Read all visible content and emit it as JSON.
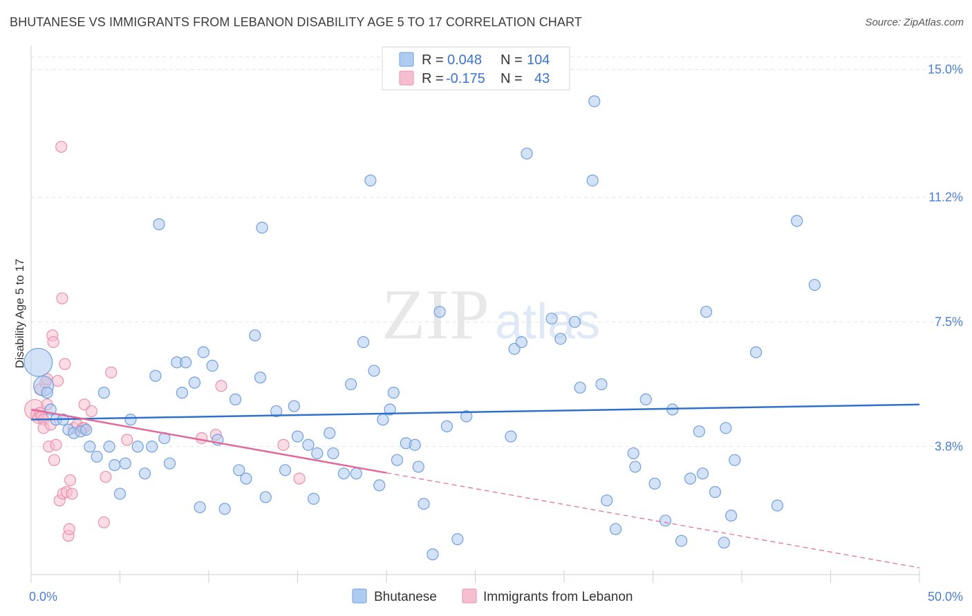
{
  "title": "BHUTANESE VS IMMIGRANTS FROM LEBANON DISABILITY AGE 5 TO 17 CORRELATION CHART",
  "source": "Source: ZipAtlas.com",
  "watermark": {
    "zip": "ZIP",
    "atlas": "atlas"
  },
  "colors": {
    "blue_fill": "#aecbf0",
    "blue_stroke": "#6f9fdc",
    "blue_line": "#2f6fcd",
    "pink_fill": "#f6bfd0",
    "pink_stroke": "#ea8fae",
    "pink_line": "#e2679a",
    "grid": "#e3e3e3",
    "tick_text": "#4a7fd4"
  },
  "stats": {
    "blue": {
      "r_label": "R =",
      "r_value": "0.048",
      "n_label": "N =",
      "n_value": "104"
    },
    "pink": {
      "r_label": "R =",
      "r_value": "-0.175",
      "n_label": "N =",
      "n_value": "43"
    }
  },
  "chart_data": {
    "type": "scatter",
    "ylabel": "Disability Age 5 to 17",
    "xlim": [
      0,
      50
    ],
    "ylim": [
      0,
      15.5
    ],
    "x_tick_labels": [
      {
        "value": 0,
        "label": "0.0%"
      },
      {
        "value": 50,
        "label": "50.0%"
      }
    ],
    "y_tick_labels": [
      {
        "value": 3.8,
        "label": "3.8%"
      },
      {
        "value": 7.5,
        "label": "7.5%"
      },
      {
        "value": 11.2,
        "label": "11.2%"
      },
      {
        "value": 15.0,
        "label": "15.0%"
      }
    ],
    "grid": "horizontal dashed",
    "legend_position": "bottom-center",
    "series": [
      {
        "name": "Bhutanese",
        "color": "#aecbf0",
        "trend": {
          "x": [
            0,
            50
          ],
          "y": [
            4.6,
            5.05
          ],
          "dashed_from": null
        },
        "points": [
          {
            "x": 0.4,
            "y": 6.3,
            "s": 3
          },
          {
            "x": 0.7,
            "y": 5.6,
            "s": 2
          },
          {
            "x": 0.9,
            "y": 5.4
          },
          {
            "x": 1.1,
            "y": 4.9
          },
          {
            "x": 1.4,
            "y": 4.6
          },
          {
            "x": 1.8,
            "y": 4.6
          },
          {
            "x": 2.1,
            "y": 4.3
          },
          {
            "x": 2.4,
            "y": 4.2
          },
          {
            "x": 2.8,
            "y": 4.25
          },
          {
            "x": 3.1,
            "y": 4.3
          },
          {
            "x": 3.3,
            "y": 3.8
          },
          {
            "x": 3.7,
            "y": 3.5
          },
          {
            "x": 4.1,
            "y": 5.4
          },
          {
            "x": 4.4,
            "y": 3.8
          },
          {
            "x": 4.7,
            "y": 3.25
          },
          {
            "x": 5.0,
            "y": 2.4
          },
          {
            "x": 5.3,
            "y": 3.3
          },
          {
            "x": 5.6,
            "y": 4.6
          },
          {
            "x": 6.0,
            "y": 3.8
          },
          {
            "x": 6.4,
            "y": 3.0
          },
          {
            "x": 6.8,
            "y": 3.8
          },
          {
            "x": 7.0,
            "y": 5.9
          },
          {
            "x": 7.2,
            "y": 10.4
          },
          {
            "x": 7.5,
            "y": 4.05
          },
          {
            "x": 7.8,
            "y": 3.3
          },
          {
            "x": 8.2,
            "y": 6.3
          },
          {
            "x": 8.5,
            "y": 5.4
          },
          {
            "x": 8.7,
            "y": 6.3
          },
          {
            "x": 9.2,
            "y": 5.7
          },
          {
            "x": 9.5,
            "y": 2.0
          },
          {
            "x": 9.7,
            "y": 6.6
          },
          {
            "x": 10.2,
            "y": 6.2
          },
          {
            "x": 10.5,
            "y": 4.0
          },
          {
            "x": 10.9,
            "y": 1.95
          },
          {
            "x": 11.5,
            "y": 5.2
          },
          {
            "x": 11.7,
            "y": 3.1
          },
          {
            "x": 12.1,
            "y": 2.85
          },
          {
            "x": 12.6,
            "y": 7.1
          },
          {
            "x": 12.9,
            "y": 5.85
          },
          {
            "x": 13.2,
            "y": 2.3
          },
          {
            "x": 13.0,
            "y": 10.3
          },
          {
            "x": 13.8,
            "y": 4.85
          },
          {
            "x": 14.3,
            "y": 3.1
          },
          {
            "x": 14.8,
            "y": 5.0
          },
          {
            "x": 15.0,
            "y": 4.1
          },
          {
            "x": 15.6,
            "y": 3.85
          },
          {
            "x": 15.9,
            "y": 2.25
          },
          {
            "x": 16.1,
            "y": 3.6
          },
          {
            "x": 16.8,
            "y": 4.2
          },
          {
            "x": 17.0,
            "y": 3.6
          },
          {
            "x": 17.6,
            "y": 3.0
          },
          {
            "x": 18.0,
            "y": 5.65
          },
          {
            "x": 18.3,
            "y": 3.0
          },
          {
            "x": 18.7,
            "y": 6.9
          },
          {
            "x": 19.1,
            "y": 11.7
          },
          {
            "x": 19.3,
            "y": 6.05
          },
          {
            "x": 19.6,
            "y": 2.65
          },
          {
            "x": 19.8,
            "y": 4.6
          },
          {
            "x": 20.2,
            "y": 4.9
          },
          {
            "x": 20.4,
            "y": 5.4
          },
          {
            "x": 20.6,
            "y": 3.4
          },
          {
            "x": 21.1,
            "y": 3.9
          },
          {
            "x": 21.6,
            "y": 3.85
          },
          {
            "x": 21.8,
            "y": 3.2
          },
          {
            "x": 22.1,
            "y": 2.1
          },
          {
            "x": 22.6,
            "y": 0.6
          },
          {
            "x": 23.0,
            "y": 7.8
          },
          {
            "x": 23.4,
            "y": 4.4
          },
          {
            "x": 24.0,
            "y": 1.05
          },
          {
            "x": 24.5,
            "y": 4.7
          },
          {
            "x": 27.0,
            "y": 4.1
          },
          {
            "x": 27.2,
            "y": 6.7
          },
          {
            "x": 27.6,
            "y": 6.9
          },
          {
            "x": 27.9,
            "y": 12.5
          },
          {
            "x": 29.3,
            "y": 7.6
          },
          {
            "x": 29.8,
            "y": 7.0
          },
          {
            "x": 30.6,
            "y": 7.5
          },
          {
            "x": 30.9,
            "y": 5.55
          },
          {
            "x": 31.6,
            "y": 11.7
          },
          {
            "x": 31.7,
            "y": 14.05
          },
          {
            "x": 32.1,
            "y": 5.65
          },
          {
            "x": 32.4,
            "y": 2.2
          },
          {
            "x": 32.9,
            "y": 1.35
          },
          {
            "x": 33.9,
            "y": 3.6
          },
          {
            "x": 34.0,
            "y": 3.2
          },
          {
            "x": 34.6,
            "y": 5.2
          },
          {
            "x": 35.1,
            "y": 2.7
          },
          {
            "x": 35.7,
            "y": 1.6
          },
          {
            "x": 36.1,
            "y": 4.9
          },
          {
            "x": 36.6,
            "y": 1.0
          },
          {
            "x": 37.1,
            "y": 2.85
          },
          {
            "x": 37.6,
            "y": 4.25
          },
          {
            "x": 37.8,
            "y": 3.0
          },
          {
            "x": 38.0,
            "y": 7.8
          },
          {
            "x": 38.5,
            "y": 2.45
          },
          {
            "x": 39.0,
            "y": 0.95
          },
          {
            "x": 39.1,
            "y": 4.35
          },
          {
            "x": 39.4,
            "y": 1.75
          },
          {
            "x": 39.6,
            "y": 3.4
          },
          {
            "x": 40.8,
            "y": 6.6
          },
          {
            "x": 42.0,
            "y": 2.05
          },
          {
            "x": 43.1,
            "y": 10.5
          },
          {
            "x": 44.1,
            "y": 8.6
          }
        ]
      },
      {
        "name": "Immigrants from Lebanon",
        "color": "#f6bfd0",
        "trend": {
          "x": [
            0,
            50
          ],
          "y": [
            4.9,
            0.2
          ],
          "dashed_from": 20
        },
        "points": [
          {
            "x": 0.2,
            "y": 4.9,
            "s": 2
          },
          {
            "x": 0.3,
            "y": 4.75
          },
          {
            "x": 0.4,
            "y": 4.65
          },
          {
            "x": 0.5,
            "y": 4.8
          },
          {
            "x": 0.5,
            "y": 5.5
          },
          {
            "x": 0.6,
            "y": 4.7
          },
          {
            "x": 0.7,
            "y": 4.6
          },
          {
            "x": 0.7,
            "y": 4.35
          },
          {
            "x": 0.8,
            "y": 5.7
          },
          {
            "x": 0.9,
            "y": 5.05
          },
          {
            "x": 0.9,
            "y": 5.8
          },
          {
            "x": 1.0,
            "y": 3.8
          },
          {
            "x": 1.1,
            "y": 4.45
          },
          {
            "x": 1.2,
            "y": 7.1
          },
          {
            "x": 1.25,
            "y": 6.9
          },
          {
            "x": 1.3,
            "y": 3.4
          },
          {
            "x": 1.4,
            "y": 3.85
          },
          {
            "x": 1.5,
            "y": 5.75
          },
          {
            "x": 1.6,
            "y": 2.2
          },
          {
            "x": 1.7,
            "y": 12.7
          },
          {
            "x": 1.75,
            "y": 8.2
          },
          {
            "x": 1.8,
            "y": 2.4
          },
          {
            "x": 1.9,
            "y": 6.25
          },
          {
            "x": 2.0,
            "y": 2.45
          },
          {
            "x": 2.1,
            "y": 1.15
          },
          {
            "x": 2.15,
            "y": 1.35
          },
          {
            "x": 2.2,
            "y": 2.8
          },
          {
            "x": 2.3,
            "y": 2.4
          },
          {
            "x": 2.4,
            "y": 4.35
          },
          {
            "x": 2.6,
            "y": 4.45
          },
          {
            "x": 2.9,
            "y": 4.35
          },
          {
            "x": 3.0,
            "y": 4.35
          },
          {
            "x": 3.0,
            "y": 5.05
          },
          {
            "x": 3.4,
            "y": 4.85
          },
          {
            "x": 4.1,
            "y": 1.55
          },
          {
            "x": 4.2,
            "y": 2.9
          },
          {
            "x": 4.5,
            "y": 6.0
          },
          {
            "x": 5.4,
            "y": 4.0
          },
          {
            "x": 9.6,
            "y": 4.05
          },
          {
            "x": 10.4,
            "y": 4.15
          },
          {
            "x": 10.7,
            "y": 5.6
          },
          {
            "x": 14.2,
            "y": 3.85
          },
          {
            "x": 15.1,
            "y": 2.85
          }
        ]
      }
    ]
  },
  "legend": {
    "items": [
      {
        "label": "Bhutanese"
      },
      {
        "label": "Immigrants from Lebanon"
      }
    ]
  }
}
